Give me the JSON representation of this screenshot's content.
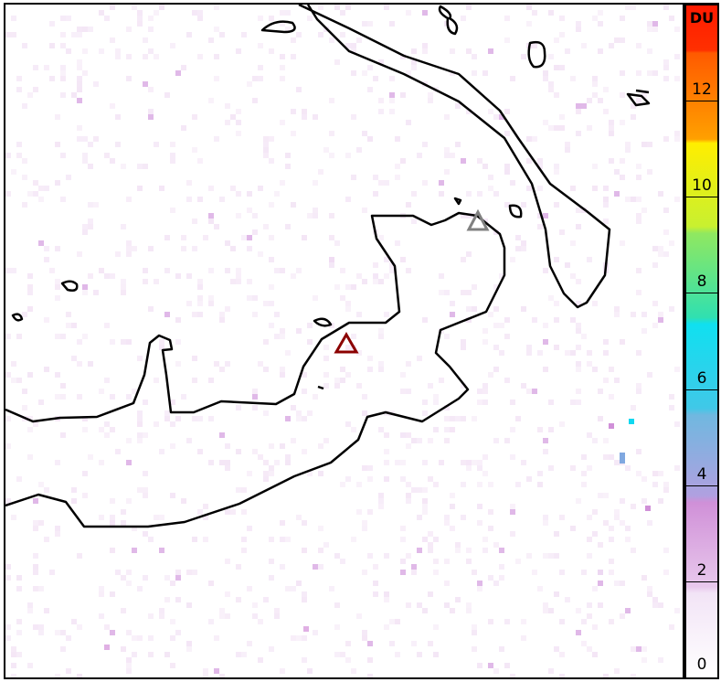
{
  "map": {
    "volcano_markers": [
      {
        "name": "primary-volcano",
        "color": "#8b0000"
      },
      {
        "name": "secondary-volcano",
        "color": "#808080"
      }
    ],
    "coastline_color": "#000000"
  },
  "colorbar": {
    "unit": "DU",
    "range": [
      0,
      14
    ],
    "tick_labels": [
      "0",
      "2",
      "4",
      "6",
      "8",
      "10",
      "12"
    ],
    "colors": [
      "#ffffff",
      "#e8c8ec",
      "#d090d8",
      "#70b8e0",
      "#10e0f0",
      "#80e070",
      "#ffff00",
      "#ff8000",
      "#ff1a00"
    ]
  }
}
